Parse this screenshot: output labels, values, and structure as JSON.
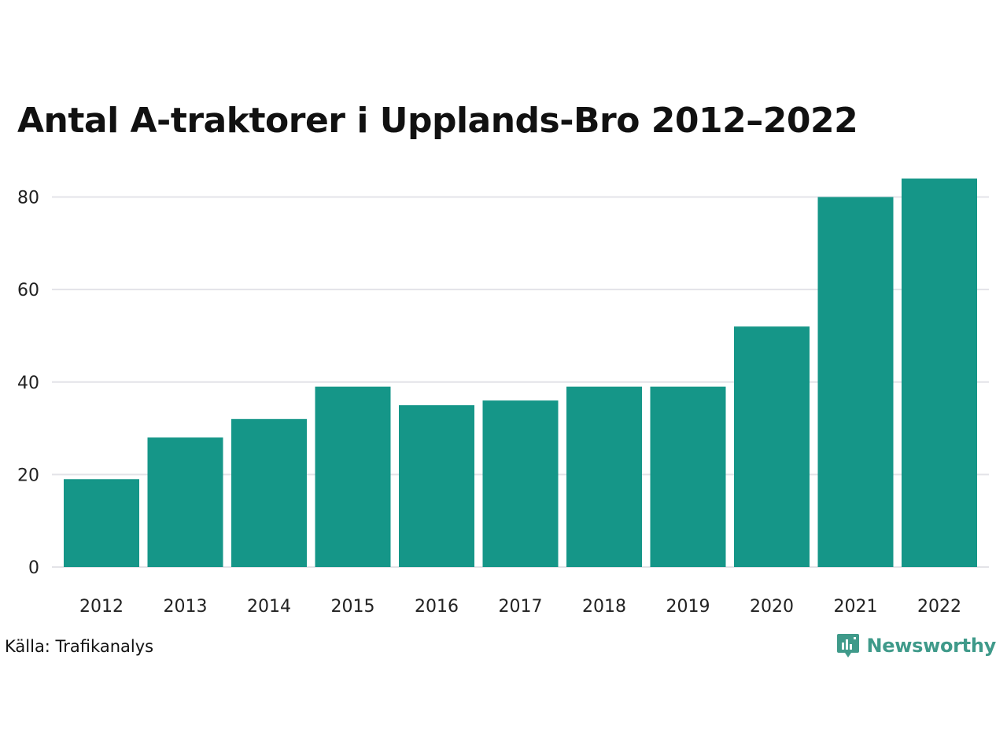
{
  "chart_data": {
    "type": "bar",
    "title": "Antal A-traktorer i Upplands-Bro 2012–2022",
    "categories": [
      "2012",
      "2013",
      "2014",
      "2015",
      "2016",
      "2017",
      "2018",
      "2019",
      "2020",
      "2021",
      "2022"
    ],
    "values": [
      19,
      28,
      32,
      39,
      35,
      36,
      39,
      39,
      52,
      80,
      84
    ],
    "xlabel": "",
    "ylabel": "",
    "ylim": [
      0,
      84
    ],
    "yticks": [
      0,
      20,
      40,
      60,
      80
    ],
    "grid": true,
    "bar_color": "#159688",
    "grid_color": "#e3e3e8"
  },
  "footer": {
    "source": "Källa: Trafikanalys",
    "brand": "Newsworthy",
    "brand_icon": "newsworthy-logo-icon",
    "brand_color": "#3f9a8a"
  }
}
